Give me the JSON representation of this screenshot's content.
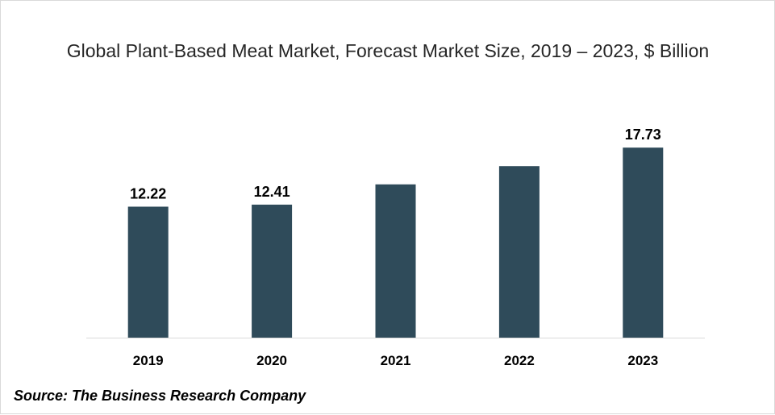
{
  "chart_data": {
    "type": "bar",
    "title": "Global Plant-Based Meat Market, Forecast Market Size, 2019 – 2023, $ Billion",
    "categories": [
      "2019",
      "2020",
      "2021",
      "2022",
      "2023"
    ],
    "values": [
      12.22,
      12.41,
      14.3,
      16.0,
      17.73
    ],
    "data_labels": [
      "12.22",
      "12.41",
      "",
      "",
      "17.73"
    ],
    "xlabel": "",
    "ylabel": "",
    "ylim": [
      0,
      20
    ],
    "grid": false,
    "legend": "none",
    "bar_color": "#2f4b5a"
  },
  "source": "Source: The Business Research Company"
}
